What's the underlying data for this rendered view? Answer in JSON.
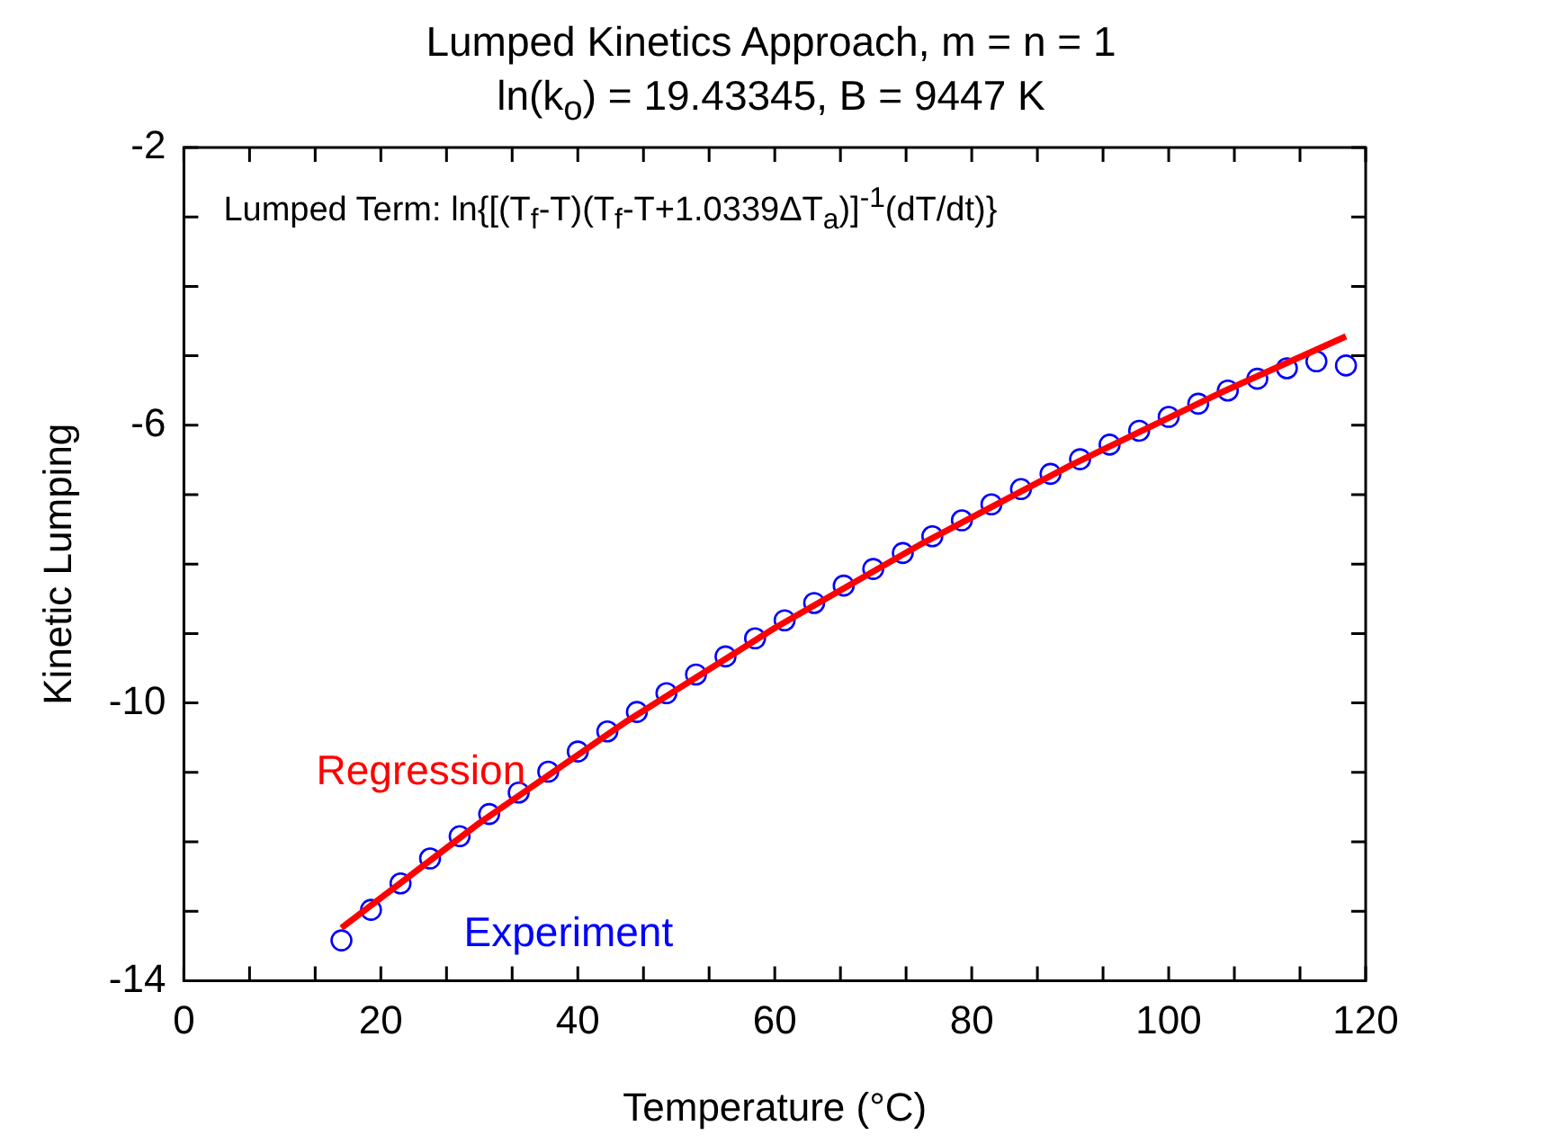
{
  "chart_data": {
    "type": "scatter",
    "title": "Lumped Kinetics Approach, m = n = 1",
    "subtitle": "ln(k$_{o}$) = 19.43345, B = 9447 K",
    "xlabel": "Temperature (°C)",
    "ylabel": "Kinetic Lumping",
    "annotations": [
      "Lumped Term: ln{[(T$_{f}$-T)(T$_{f}$-T+1.0339ΔT$_{a}$)]$^{-1}$(dT/dt)}"
    ],
    "xlim": [
      0,
      120
    ],
    "ylim": [
      -14,
      -2
    ],
    "xticks": [
      0,
      {
        "value": 6.667,
        "label": null
      },
      {
        "value": 13.333,
        "label": null
      },
      20,
      {
        "value": 26.667,
        "label": null
      },
      {
        "value": 33.333,
        "label": null
      },
      40,
      {
        "value": 46.667,
        "label": null
      },
      {
        "value": 53.333,
        "label": null
      },
      60,
      {
        "value": 66.667,
        "label": null
      },
      {
        "value": 73.333,
        "label": null
      },
      80,
      {
        "value": 86.667,
        "label": null
      },
      {
        "value": 93.333,
        "label": null
      },
      100,
      {
        "value": 106.667,
        "label": null
      },
      {
        "value": 113.333,
        "label": null
      },
      120
    ],
    "yticks": [
      -14,
      {
        "value": -13,
        "label": null
      },
      {
        "value": -12,
        "label": null
      },
      {
        "value": -11,
        "label": null
      },
      -10,
      {
        "value": -9,
        "label": null
      },
      {
        "value": -8,
        "label": null
      },
      {
        "value": -7,
        "label": null
      },
      -6,
      {
        "value": -5,
        "label": null
      },
      {
        "value": -4,
        "label": null
      },
      {
        "value": -3,
        "label": null
      },
      -2
    ],
    "legend": false,
    "line_style": "solid",
    "series": [
      {
        "type": "line",
        "name": "Regression",
        "color": "#ff0000",
        "marker": "none",
        "x": [
          16,
          30,
          45,
          60,
          75,
          90,
          105,
          118
        ],
        "values": [
          -13.24,
          -11.73,
          -10.26,
          -8.92,
          -7.7,
          -6.58,
          -5.55,
          -4.72
        ]
      },
      {
        "type": "scatter",
        "name": "Experiment",
        "color": "#0000ff",
        "marker": "circle",
        "x": [
          16,
          19,
          22,
          25,
          28,
          31,
          34,
          37,
          40,
          43,
          46,
          49,
          52,
          55,
          58,
          61,
          64,
          67,
          70,
          73,
          76,
          79,
          82,
          85,
          88,
          91,
          94,
          97,
          100,
          103,
          106,
          109,
          112,
          115,
          118
        ],
        "values": [
          -13.42,
          -12.98,
          -12.6,
          -12.24,
          -11.92,
          -11.6,
          -11.29,
          -10.99,
          -10.7,
          -10.41,
          -10.13,
          -9.86,
          -9.59,
          -9.33,
          -9.07,
          -8.81,
          -8.56,
          -8.31,
          -8.07,
          -7.84,
          -7.6,
          -7.37,
          -7.14,
          -6.92,
          -6.7,
          -6.49,
          -6.28,
          -6.08,
          -5.88,
          -5.69,
          -5.5,
          -5.33,
          -5.18,
          -5.08,
          -5.14
        ]
      }
    ]
  }
}
